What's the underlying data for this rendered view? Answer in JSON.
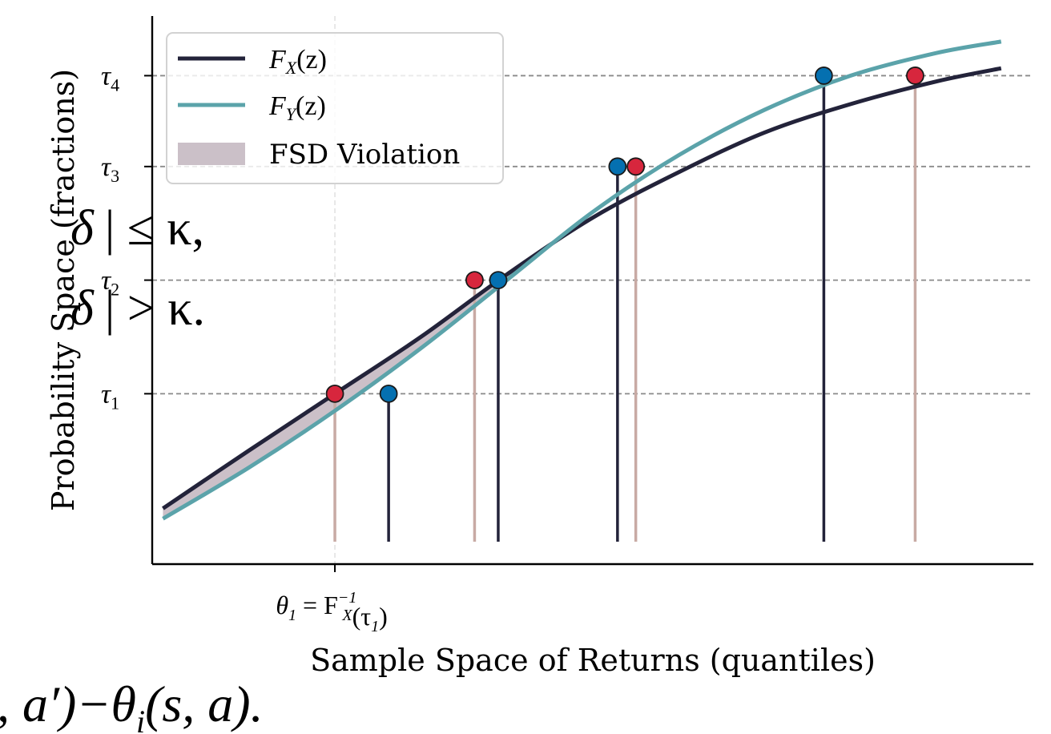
{
  "chart_data": {
    "type": "line",
    "xlabel": "Sample Space of Returns (quantiles)",
    "ylabel": "Probability Space (fractions)",
    "x_tick": {
      "label_main": "θ",
      "label_sub": "1",
      "label_rest": " = F",
      "label_rest_sub": "X",
      "label_rest_sup": "−1",
      "label_tail": "(τ",
      "label_tail_sub": "1",
      "label_end": ")"
    },
    "y_ticks": [
      {
        "name": "τ",
        "sub": "1",
        "value": 0.3
      },
      {
        "name": "τ",
        "sub": "2",
        "value": 0.5
      },
      {
        "name": "τ",
        "sub": "3",
        "value": 0.7
      },
      {
        "name": "τ",
        "sub": "4",
        "value": 0.86
      }
    ],
    "series": [
      {
        "name": "F_X(z)",
        "label_main": "F",
        "label_sub": "X",
        "label_tail": "(z)",
        "color": "#23233a",
        "x": [
          -2.8,
          -2.0,
          -1.2,
          -0.4,
          0.4,
          1.2,
          2.0,
          2.8,
          3.6,
          4.4,
          5.0
        ],
        "y": [
          0.098,
          0.2,
          0.3,
          0.4,
          0.51,
          0.61,
          0.69,
          0.76,
          0.81,
          0.85,
          0.873
        ]
      },
      {
        "name": "F_Y(z)",
        "label_main": "F",
        "label_sub": "Y",
        "label_tail": "(z)",
        "color": "#5ba3aa",
        "x": [
          -2.8,
          -2.0,
          -1.2,
          -0.4,
          0.4,
          1.2,
          2.0,
          2.8,
          3.6,
          4.4,
          5.0
        ],
        "y": [
          0.08,
          0.17,
          0.27,
          0.38,
          0.5,
          0.62,
          0.72,
          0.8,
          0.86,
          0.9,
          0.92
        ]
      }
    ],
    "fill_label": "FSD Violation",
    "fill_color": "#cbc0c8",
    "points_x": [
      {
        "x": -1.2,
        "y": 0.3
      },
      {
        "x": 0.1,
        "y": 0.5
      },
      {
        "x": 1.6,
        "y": 0.7
      },
      {
        "x": 4.2,
        "y": 0.86
      }
    ],
    "points_y": [
      {
        "x": -0.7,
        "y": 0.3
      },
      {
        "x": 0.32,
        "y": 0.5
      },
      {
        "x": 1.43,
        "y": 0.7
      },
      {
        "x": 3.35,
        "y": 0.86
      }
    ],
    "colors": {
      "point_x": "#d7263d",
      "point_y": "#0570b0",
      "stem_x": "#c8aaa4",
      "stem_y": "#23233a",
      "grid": "#8a8a8a"
    },
    "xlim": [
      -2.9,
      5.3
    ],
    "ylim": [
      0.0,
      0.965
    ],
    "grid": "horizontal dashed at τ levels",
    "legend_position": "top-left"
  },
  "overlay_text": {
    "line1_a": "δ",
    "line1_b": "| ≤ κ,",
    "line2_a": "δ",
    "line2_b": "| > κ.",
    "bottom": ", a′)−θ",
    "bottom_sub": "i",
    "bottom_tail": "(s, a)."
  }
}
